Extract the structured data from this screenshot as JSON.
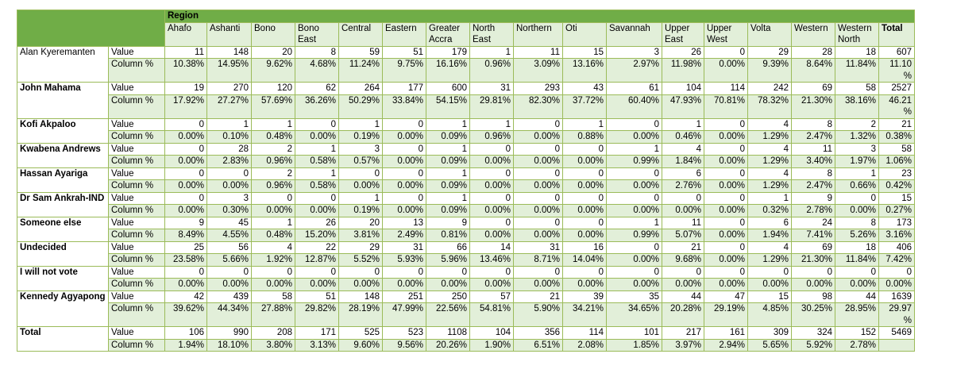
{
  "table": {
    "group_header": "Region",
    "columns": [
      "Ahafo",
      "Ashanti",
      "Bono",
      "Bono East",
      "Central",
      "Eastern",
      "Greater Accra",
      "North East",
      "Northern",
      "Oti",
      "Savannah",
      "Upper East",
      "Upper West",
      "Volta",
      "Western",
      "Western North",
      "Total"
    ],
    "row_labels": {
      "value": "Value",
      "pct": "Column %"
    },
    "rows": [
      {
        "name": "Alan Kyeremanten",
        "value": [
          "11",
          "148",
          "20",
          "8",
          "59",
          "51",
          "179",
          "1",
          "11",
          "15",
          "3",
          "26",
          "0",
          "29",
          "28",
          "18",
          "607"
        ],
        "pct": [
          "10.38%",
          "14.95%",
          "9.62%",
          "4.68%",
          "11.24%",
          "9.75%",
          "16.16%",
          "0.96%",
          "3.09%",
          "13.16%",
          "2.97%",
          "11.98%",
          "0.00%",
          "9.39%",
          "8.64%",
          "11.84%",
          "11.10 %"
        ]
      },
      {
        "name": "John Mahama",
        "value": [
          "19",
          "270",
          "120",
          "62",
          "264",
          "177",
          "600",
          "31",
          "293",
          "43",
          "61",
          "104",
          "114",
          "242",
          "69",
          "58",
          "2527"
        ],
        "pct": [
          "17.92%",
          "27.27%",
          "57.69%",
          "36.26%",
          "50.29%",
          "33.84%",
          "54.15%",
          "29.81%",
          "82.30%",
          "37.72%",
          "60.40%",
          "47.93%",
          "70.81%",
          "78.32%",
          "21.30%",
          "38.16%",
          "46.21 %"
        ]
      },
      {
        "name": "Kofi Akpaloo",
        "value": [
          "0",
          "1",
          "1",
          "0",
          "1",
          "0",
          "1",
          "1",
          "0",
          "1",
          "0",
          "1",
          "0",
          "4",
          "8",
          "2",
          "21"
        ],
        "pct": [
          "0.00%",
          "0.10%",
          "0.48%",
          "0.00%",
          "0.19%",
          "0.00%",
          "0.09%",
          "0.96%",
          "0.00%",
          "0.88%",
          "0.00%",
          "0.46%",
          "0.00%",
          "1.29%",
          "2.47%",
          "1.32%",
          "0.38%"
        ]
      },
      {
        "name": "Kwabena Andrews",
        "value": [
          "0",
          "28",
          "2",
          "1",
          "3",
          "0",
          "1",
          "0",
          "0",
          "0",
          "1",
          "4",
          "0",
          "4",
          "11",
          "3",
          "58"
        ],
        "pct": [
          "0.00%",
          "2.83%",
          "0.96%",
          "0.58%",
          "0.57%",
          "0.00%",
          "0.09%",
          "0.00%",
          "0.00%",
          "0.00%",
          "0.99%",
          "1.84%",
          "0.00%",
          "1.29%",
          "3.40%",
          "1.97%",
          "1.06%"
        ]
      },
      {
        "name": "Hassan Ayariga",
        "value": [
          "0",
          "0",
          "2",
          "1",
          "0",
          "0",
          "1",
          "0",
          "0",
          "0",
          "0",
          "6",
          "0",
          "4",
          "8",
          "1",
          "23"
        ],
        "pct": [
          "0.00%",
          "0.00%",
          "0.96%",
          "0.58%",
          "0.00%",
          "0.00%",
          "0.09%",
          "0.00%",
          "0.00%",
          "0.00%",
          "0.00%",
          "2.76%",
          "0.00%",
          "1.29%",
          "2.47%",
          "0.66%",
          "0.42%"
        ]
      },
      {
        "name": "Dr Sam Ankrah-IND",
        "value": [
          "0",
          "3",
          "0",
          "0",
          "1",
          "0",
          "1",
          "0",
          "0",
          "0",
          "0",
          "0",
          "0",
          "1",
          "9",
          "0",
          "15"
        ],
        "pct": [
          "0.00%",
          "0.30%",
          "0.00%",
          "0.00%",
          "0.19%",
          "0.00%",
          "0.09%",
          "0.00%",
          "0.00%",
          "0.00%",
          "0.00%",
          "0.00%",
          "0.00%",
          "0.32%",
          "2.78%",
          "0.00%",
          "0.27%"
        ]
      },
      {
        "name": "Someone else",
        "value": [
          "9",
          "45",
          "1",
          "26",
          "20",
          "13",
          "9",
          "0",
          "0",
          "0",
          "1",
          "11",
          "0",
          "6",
          "24",
          "8",
          "173"
        ],
        "pct": [
          "8.49%",
          "4.55%",
          "0.48%",
          "15.20%",
          "3.81%",
          "2.49%",
          "0.81%",
          "0.00%",
          "0.00%",
          "0.00%",
          "0.99%",
          "5.07%",
          "0.00%",
          "1.94%",
          "7.41%",
          "5.26%",
          "3.16%"
        ]
      },
      {
        "name": "Undecided",
        "value": [
          "25",
          "56",
          "4",
          "22",
          "29",
          "31",
          "66",
          "14",
          "31",
          "16",
          "0",
          "21",
          "0",
          "4",
          "69",
          "18",
          "406"
        ],
        "pct": [
          "23.58%",
          "5.66%",
          "1.92%",
          "12.87%",
          "5.52%",
          "5.93%",
          "5.96%",
          "13.46%",
          "8.71%",
          "14.04%",
          "0.00%",
          "9.68%",
          "0.00%",
          "1.29%",
          "21.30%",
          "11.84%",
          "7.42%"
        ]
      },
      {
        "name": "I will not vote",
        "value": [
          "0",
          "0",
          "0",
          "0",
          "0",
          "0",
          "0",
          "0",
          "0",
          "0",
          "0",
          "0",
          "0",
          "0",
          "0",
          "0",
          "0"
        ],
        "pct": [
          "0.00%",
          "0.00%",
          "0.00%",
          "0.00%",
          "0.00%",
          "0.00%",
          "0.00%",
          "0.00%",
          "0.00%",
          "0.00%",
          "0.00%",
          "0.00%",
          "0.00%",
          "0.00%",
          "0.00%",
          "0.00%",
          "0.00%"
        ]
      },
      {
        "name": "Kennedy Agyapong",
        "value": [
          "42",
          "439",
          "58",
          "51",
          "148",
          "251",
          "250",
          "57",
          "21",
          "39",
          "35",
          "44",
          "47",
          "15",
          "98",
          "44",
          "1639"
        ],
        "pct": [
          "39.62%",
          "44.34%",
          "27.88%",
          "29.82%",
          "28.19%",
          "47.99%",
          "22.56%",
          "54.81%",
          "5.90%",
          "34.21%",
          "34.65%",
          "20.28%",
          "29.19%",
          "4.85%",
          "30.25%",
          "28.95%",
          "29.97 %"
        ]
      },
      {
        "name": "Total",
        "value": [
          "106",
          "990",
          "208",
          "171",
          "525",
          "523",
          "1108",
          "104",
          "356",
          "114",
          "101",
          "217",
          "161",
          "309",
          "324",
          "152",
          "5469"
        ],
        "pct": [
          "1.94%",
          "18.10%",
          "3.80%",
          "3.13%",
          "9.60%",
          "9.56%",
          "20.26%",
          "1.90%",
          "6.51%",
          "2.08%",
          "1.85%",
          "3.97%",
          "2.94%",
          "5.65%",
          "5.92%",
          "2.78%",
          ""
        ]
      }
    ]
  }
}
